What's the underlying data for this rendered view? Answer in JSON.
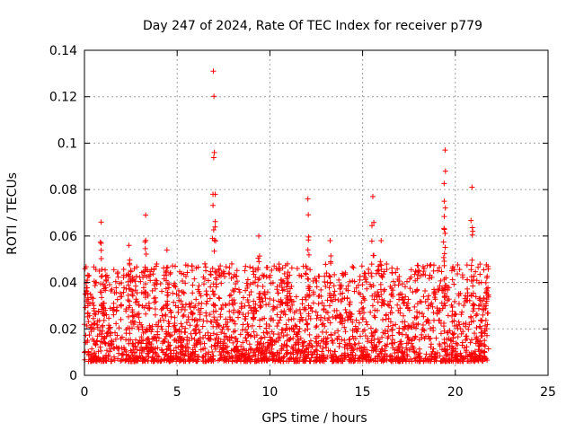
{
  "chart_data": {
    "type": "scatter",
    "title": "Day 247 of 2024, Rate Of TEC Index for receiver p779",
    "xlabel": "GPS time / hours",
    "ylabel": "ROTI / TECUs",
    "xlim": [
      0,
      25
    ],
    "ylim": [
      0,
      0.14
    ],
    "x_ticks": [
      "0",
      "5",
      "10",
      "15",
      "20",
      "25"
    ],
    "y_ticks": [
      "0",
      "0.02",
      "0.04",
      "0.06",
      "0.08",
      "0.1",
      "0.12",
      "0.14"
    ],
    "grid": true,
    "marker": "+",
    "series_color": "#ff0000",
    "data_coverage_hours": [
      0,
      21.8
    ],
    "series": [
      {
        "name": "ROTI",
        "notable_points": [
          {
            "x": 6.95,
            "y": 0.131
          },
          {
            "x": 19.45,
            "y": 0.097
          },
          {
            "x": 7.05,
            "y": 0.078
          },
          {
            "x": 12.05,
            "y": 0.076
          },
          {
            "x": 15.55,
            "y": 0.077
          },
          {
            "x": 19.4,
            "y": 0.075
          },
          {
            "x": 20.9,
            "y": 0.081
          },
          {
            "x": 3.3,
            "y": 0.069
          },
          {
            "x": 0.9,
            "y": 0.066
          },
          {
            "x": 9.4,
            "y": 0.06
          },
          {
            "x": 2.4,
            "y": 0.056
          },
          {
            "x": 4.45,
            "y": 0.054
          },
          {
            "x": 13.25,
            "y": 0.058
          },
          {
            "x": 16.0,
            "y": 0.058
          },
          {
            "x": 0.15,
            "y": 0.041
          },
          {
            "x": 10.95,
            "y": 0.048
          },
          {
            "x": 21.7,
            "y": 0.042
          }
        ],
        "typical_band": [
          0.003,
          0.045
        ]
      }
    ]
  }
}
